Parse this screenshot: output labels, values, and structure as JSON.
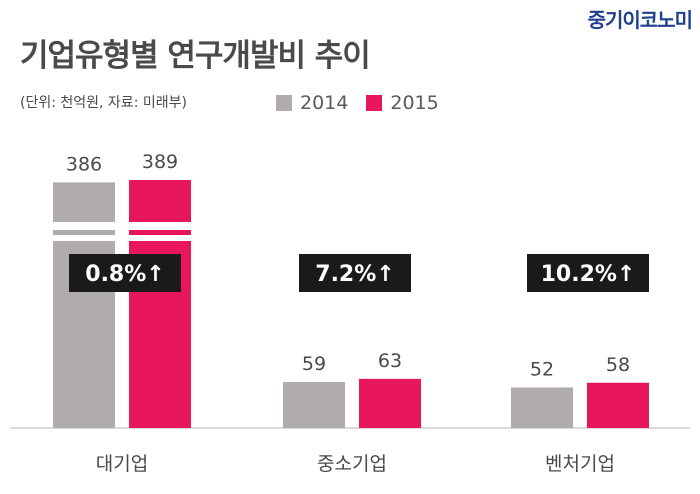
{
  "brand": "중기이코노미",
  "chart_data": {
    "type": "bar",
    "title": "기업유형별 연구개발비 추이",
    "unit_note": "(단위: 천억원, 자료: 미래부)",
    "categories": [
      "대기업",
      "중소기업",
      "벤처기업"
    ],
    "series": [
      {
        "name": "2014",
        "color": "#b0acab",
        "values": [
          386,
          59,
          52
        ]
      },
      {
        "name": "2015",
        "color": "#e8175d",
        "values": [
          389,
          63,
          58
        ]
      }
    ],
    "growth_labels": [
      "0.8%↑",
      "7.2%↑",
      "10.2%↑"
    ],
    "axis_break": true,
    "legend_position": "top",
    "grid": false
  }
}
